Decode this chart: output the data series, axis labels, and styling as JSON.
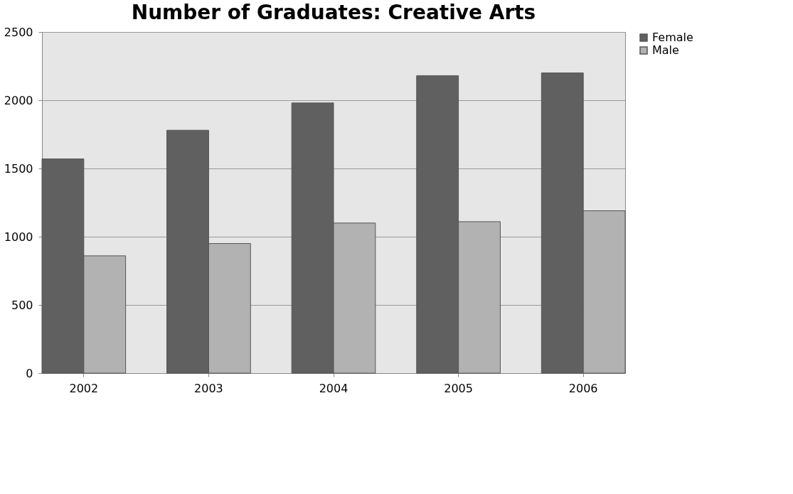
{
  "chart_data": {
    "type": "bar",
    "title": "Number of Graduates: Creative Arts",
    "categories": [
      "2002",
      "2003",
      "2004",
      "2005",
      "2006"
    ],
    "series": [
      {
        "name": "Female",
        "color": "#606060",
        "values": [
          1570,
          1780,
          1980,
          2180,
          2200
        ]
      },
      {
        "name": "Male",
        "color": "#b2b2b2",
        "values": [
          860,
          950,
          1100,
          1110,
          1190
        ]
      }
    ],
    "ylim": [
      0,
      2500
    ],
    "yticks": [
      0,
      500,
      1000,
      1500,
      2000,
      2500
    ],
    "grid": "y",
    "legend": "right"
  }
}
